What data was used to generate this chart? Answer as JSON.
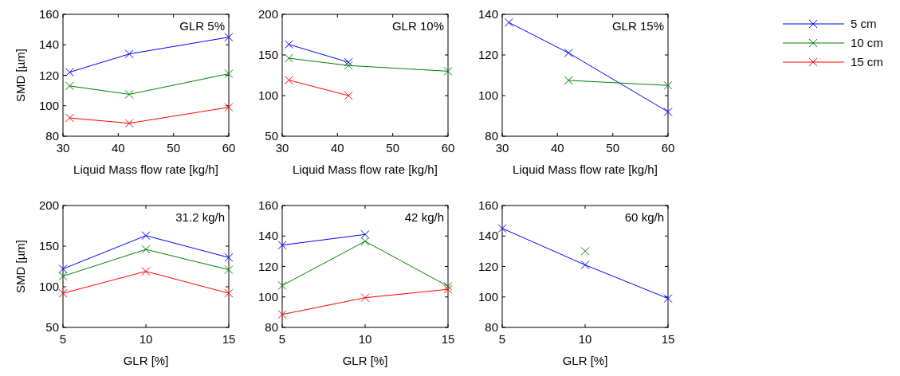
{
  "chart_data": [
    {
      "type": "line",
      "title": "GLR 5%",
      "xlabel": "Liquid Mass flow rate [kg/h]",
      "ylabel": "SMD [µm]",
      "xlim": [
        30,
        60
      ],
      "xticks": [
        30,
        40,
        50,
        60
      ],
      "ylim": [
        80,
        160
      ],
      "yticks": [
        80,
        100,
        120,
        140,
        160
      ],
      "marker": "cross",
      "legend": "right",
      "series": [
        {
          "name": "5 cm",
          "color": "#0000ff",
          "x": [
            31.2,
            42,
            60
          ],
          "values": [
            122,
            134,
            145
          ]
        },
        {
          "name": "10 cm",
          "color": "#008000",
          "x": [
            31.2,
            42,
            60
          ],
          "values": [
            113,
            107.5,
            121
          ]
        },
        {
          "name": "15 cm",
          "color": "#ff0000",
          "x": [
            31.2,
            42,
            60
          ],
          "values": [
            92,
            88.5,
            99
          ]
        }
      ]
    },
    {
      "type": "line",
      "title": "GLR 10%",
      "xlabel": "Liquid Mass flow rate [kg/h]",
      "xlim": [
        30,
        60
      ],
      "xticks": [
        30,
        40,
        50,
        60
      ],
      "ylim": [
        50,
        200
      ],
      "yticks": [
        50,
        100,
        150,
        200
      ],
      "marker": "cross",
      "series": [
        {
          "color": "#0000ff",
          "x": [
            31.2,
            42
          ],
          "values": [
            163,
            141
          ]
        },
        {
          "color": "#008000",
          "x": [
            31.2,
            42,
            60
          ],
          "values": [
            146,
            137,
            130
          ]
        },
        {
          "color": "#ff0000",
          "x": [
            31.2,
            42
          ],
          "values": [
            119,
            100
          ]
        }
      ]
    },
    {
      "type": "line",
      "title": "GLR 15%",
      "xlabel": "Liquid Mass flow rate [kg/h]",
      "xlim": [
        30,
        60
      ],
      "xticks": [
        30,
        40,
        50,
        60
      ],
      "ylim": [
        80,
        140
      ],
      "yticks": [
        80,
        100,
        120,
        140
      ],
      "marker": "cross",
      "series": [
        {
          "color": "#0000ff",
          "x": [
            31.2,
            42,
            60
          ],
          "values": [
            136,
            121,
            92
          ]
        },
        {
          "color": "#008000",
          "x": [
            42,
            60
          ],
          "values": [
            107.5,
            105
          ]
        }
      ]
    },
    {
      "type": "line",
      "title": "31.2 kg/h",
      "xlabel": "GLR [%]",
      "ylabel": "SMD [µm]",
      "xlim": [
        5,
        15
      ],
      "xticks": [
        5,
        10,
        15
      ],
      "ylim": [
        50,
        200
      ],
      "yticks": [
        50,
        100,
        150,
        200
      ],
      "marker": "cross",
      "series": [
        {
          "color": "#0000ff",
          "x": [
            5,
            10,
            15
          ],
          "values": [
            122,
            163,
            136
          ]
        },
        {
          "color": "#008000",
          "x": [
            5,
            10,
            15
          ],
          "values": [
            113,
            146,
            121
          ]
        },
        {
          "color": "#ff0000",
          "x": [
            5,
            10,
            15
          ],
          "values": [
            92,
            119,
            92
          ]
        }
      ]
    },
    {
      "type": "line",
      "title": "42 kg/h",
      "xlabel": "GLR [%]",
      "xlim": [
        5,
        15
      ],
      "xticks": [
        5,
        10,
        15
      ],
      "ylim": [
        80,
        160
      ],
      "yticks": [
        80,
        100,
        120,
        140,
        160
      ],
      "marker": "cross",
      "series": [
        {
          "color": "#0000ff",
          "x": [
            5,
            10
          ],
          "values": [
            134,
            141
          ]
        },
        {
          "color": "#008000",
          "x": [
            5,
            10,
            15
          ],
          "values": [
            107.5,
            136.5,
            107
          ]
        },
        {
          "color": "#ff0000",
          "x": [
            5,
            10,
            15
          ],
          "values": [
            88.5,
            99.5,
            105
          ]
        }
      ]
    },
    {
      "type": "line",
      "title": "60 kg/h",
      "xlabel": "GLR [%]",
      "xlim": [
        5,
        15
      ],
      "xticks": [
        5,
        10,
        15
      ],
      "ylim": [
        80,
        160
      ],
      "yticks": [
        80,
        100,
        120,
        140,
        160
      ],
      "marker": "cross",
      "series": [
        {
          "color": "#0000ff",
          "x": [
            5,
            10,
            15
          ],
          "values": [
            145,
            121,
            99
          ]
        },
        {
          "color": "#008000",
          "x": [
            10
          ],
          "values": [
            130
          ]
        }
      ]
    }
  ]
}
